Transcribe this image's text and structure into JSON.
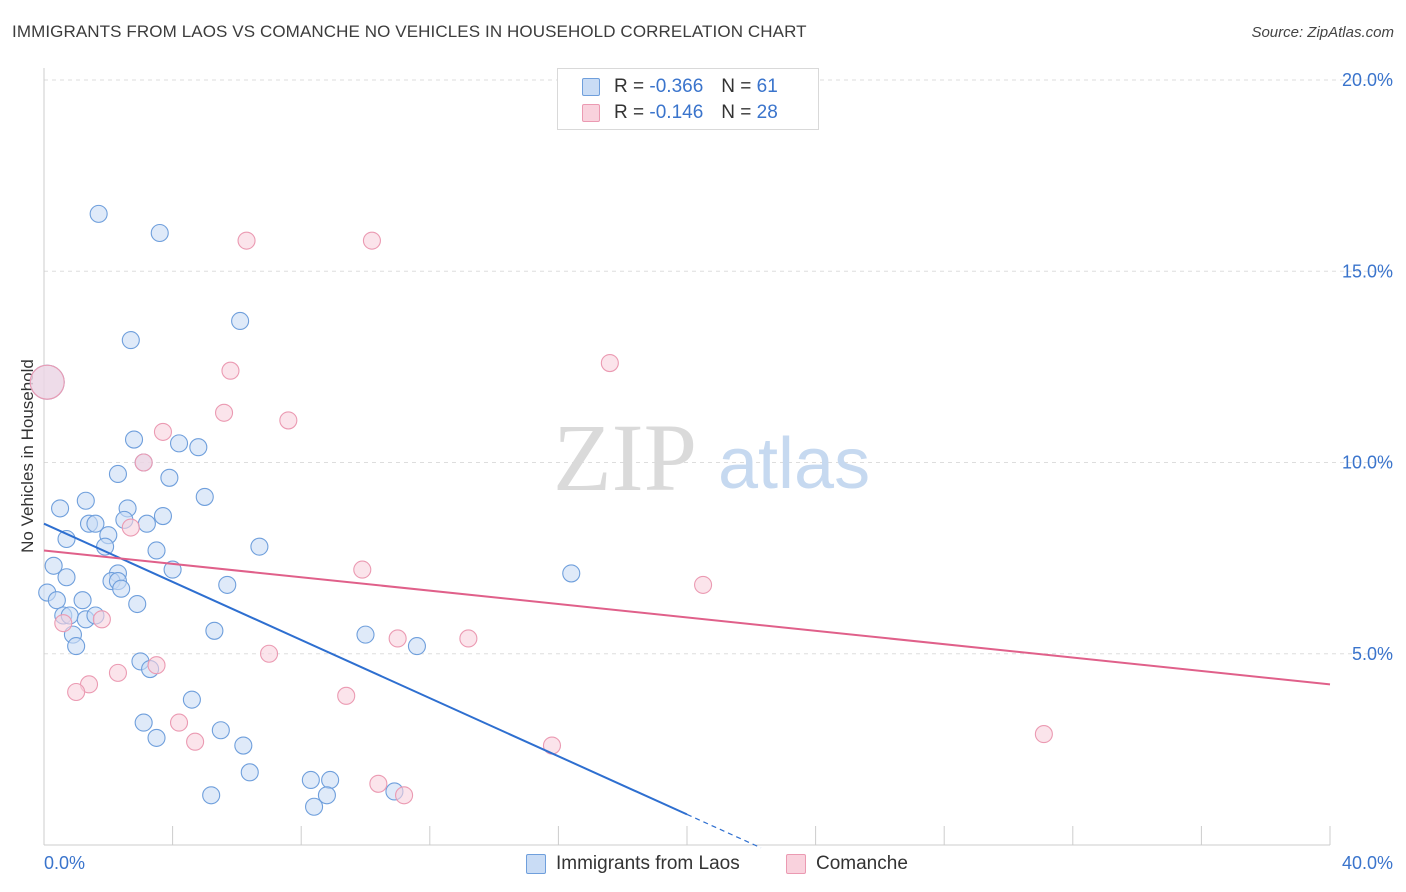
{
  "header": {
    "title": "IMMIGRANTS FROM LAOS VS COMANCHE NO VEHICLES IN HOUSEHOLD CORRELATION CHART",
    "source": "Source: ZipAtlas.com"
  },
  "watermark": {
    "zip": "ZIP",
    "atlas": "atlas"
  },
  "legend": {
    "rows": [
      {
        "r_label": "R =",
        "r_value": "-0.366",
        "n_label": "N =",
        "n_value": "61"
      },
      {
        "r_label": "R =",
        "r_value": "-0.146",
        "n_label": "N =",
        "n_value": "28"
      }
    ]
  },
  "colors": {
    "blue_fill": "#c9dcf5",
    "blue_stroke": "#6f9fdc",
    "blue_line": "#2e6fd0",
    "pink_fill": "#f9d2dd",
    "pink_stroke": "#eb9ab2",
    "pink_line": "#e0608a",
    "grid": "#dddddd",
    "tick_text": "#3a74cc"
  },
  "chart_data": {
    "type": "scatter",
    "title": "IMMIGRANTS FROM LAOS VS COMANCHE NO VEHICLES IN HOUSEHOLD CORRELATION CHART",
    "xlabel": "",
    "ylabel": "No Vehicles in Household",
    "xlim": [
      0,
      40
    ],
    "ylim": [
      0,
      20
    ],
    "x_tick_labels": [
      "0.0%",
      "40.0%"
    ],
    "y_ticks": [
      5,
      10,
      15,
      20
    ],
    "y_tick_labels": [
      "5.0%",
      "10.0%",
      "15.0%",
      "20.0%"
    ],
    "grid": true,
    "series": [
      {
        "name": "Immigrants from Laos",
        "r": -0.366,
        "n": 61,
        "trend": {
          "x0": 0,
          "y0": 8.4,
          "x1": 20.0,
          "y1": 0.8,
          "dash_to_x": 22.3
        },
        "points": [
          {
            "x": 0.1,
            "y": 12.1,
            "big": true
          },
          {
            "x": 1.7,
            "y": 16.5
          },
          {
            "x": 3.6,
            "y": 16.0
          },
          {
            "x": 6.1,
            "y": 13.7
          },
          {
            "x": 2.7,
            "y": 13.2
          },
          {
            "x": 2.8,
            "y": 10.6
          },
          {
            "x": 4.2,
            "y": 10.5
          },
          {
            "x": 4.8,
            "y": 10.4
          },
          {
            "x": 3.1,
            "y": 10.0
          },
          {
            "x": 2.3,
            "y": 9.7
          },
          {
            "x": 3.9,
            "y": 9.6
          },
          {
            "x": 5.0,
            "y": 9.1
          },
          {
            "x": 1.3,
            "y": 9.0
          },
          {
            "x": 0.5,
            "y": 8.8
          },
          {
            "x": 2.6,
            "y": 8.8
          },
          {
            "x": 1.4,
            "y": 8.4
          },
          {
            "x": 1.6,
            "y": 8.4
          },
          {
            "x": 2.5,
            "y": 8.5
          },
          {
            "x": 3.7,
            "y": 8.6
          },
          {
            "x": 3.2,
            "y": 8.4
          },
          {
            "x": 0.7,
            "y": 8.0
          },
          {
            "x": 2.0,
            "y": 8.1
          },
          {
            "x": 1.9,
            "y": 7.8
          },
          {
            "x": 3.5,
            "y": 7.7
          },
          {
            "x": 6.7,
            "y": 7.8
          },
          {
            "x": 0.3,
            "y": 7.3
          },
          {
            "x": 2.3,
            "y": 7.1
          },
          {
            "x": 4.0,
            "y": 7.2
          },
          {
            "x": 0.7,
            "y": 7.0
          },
          {
            "x": 2.1,
            "y": 6.9
          },
          {
            "x": 2.3,
            "y": 6.9
          },
          {
            "x": 2.4,
            "y": 6.7
          },
          {
            "x": 5.7,
            "y": 6.8
          },
          {
            "x": 16.4,
            "y": 7.1
          },
          {
            "x": 0.1,
            "y": 6.6
          },
          {
            "x": 0.4,
            "y": 6.4
          },
          {
            "x": 1.2,
            "y": 6.4
          },
          {
            "x": 2.9,
            "y": 6.3
          },
          {
            "x": 0.6,
            "y": 6.0
          },
          {
            "x": 0.8,
            "y": 6.0
          },
          {
            "x": 1.3,
            "y": 5.9
          },
          {
            "x": 1.6,
            "y": 6.0
          },
          {
            "x": 0.9,
            "y": 5.5
          },
          {
            "x": 5.3,
            "y": 5.6
          },
          {
            "x": 1.0,
            "y": 5.2
          },
          {
            "x": 10.0,
            "y": 5.5
          },
          {
            "x": 11.6,
            "y": 5.2
          },
          {
            "x": 3.0,
            "y": 4.8
          },
          {
            "x": 3.3,
            "y": 4.6
          },
          {
            "x": 4.6,
            "y": 3.8
          },
          {
            "x": 3.1,
            "y": 3.2
          },
          {
            "x": 5.5,
            "y": 3.0
          },
          {
            "x": 3.5,
            "y": 2.8
          },
          {
            "x": 6.2,
            "y": 2.6
          },
          {
            "x": 6.4,
            "y": 1.9
          },
          {
            "x": 8.3,
            "y": 1.7
          },
          {
            "x": 8.9,
            "y": 1.7
          },
          {
            "x": 5.2,
            "y": 1.3
          },
          {
            "x": 8.8,
            "y": 1.3
          },
          {
            "x": 10.9,
            "y": 1.4
          },
          {
            "x": 8.4,
            "y": 1.0
          }
        ]
      },
      {
        "name": "Comanche",
        "r": -0.146,
        "n": 28,
        "trend": {
          "x0": 0,
          "y0": 7.7,
          "x1": 40.0,
          "y1": 4.2
        },
        "points": [
          {
            "x": 0.1,
            "y": 12.1,
            "big": true
          },
          {
            "x": 6.3,
            "y": 15.8
          },
          {
            "x": 10.2,
            "y": 15.8
          },
          {
            "x": 17.6,
            "y": 12.6
          },
          {
            "x": 5.8,
            "y": 12.4
          },
          {
            "x": 5.6,
            "y": 11.3
          },
          {
            "x": 7.6,
            "y": 11.1
          },
          {
            "x": 3.7,
            "y": 10.8
          },
          {
            "x": 3.1,
            "y": 10.0
          },
          {
            "x": 2.7,
            "y": 8.3
          },
          {
            "x": 9.9,
            "y": 7.2
          },
          {
            "x": 20.5,
            "y": 6.8
          },
          {
            "x": 1.8,
            "y": 5.9
          },
          {
            "x": 0.6,
            "y": 5.8
          },
          {
            "x": 11.0,
            "y": 5.4
          },
          {
            "x": 13.2,
            "y": 5.4
          },
          {
            "x": 7.0,
            "y": 5.0
          },
          {
            "x": 3.5,
            "y": 4.7
          },
          {
            "x": 2.3,
            "y": 4.5
          },
          {
            "x": 1.4,
            "y": 4.2
          },
          {
            "x": 1.0,
            "y": 4.0
          },
          {
            "x": 9.4,
            "y": 3.9
          },
          {
            "x": 4.2,
            "y": 3.2
          },
          {
            "x": 4.7,
            "y": 2.7
          },
          {
            "x": 15.8,
            "y": 2.6
          },
          {
            "x": 31.1,
            "y": 2.9
          },
          {
            "x": 10.4,
            "y": 1.6
          },
          {
            "x": 11.2,
            "y": 1.3
          }
        ]
      }
    ]
  }
}
